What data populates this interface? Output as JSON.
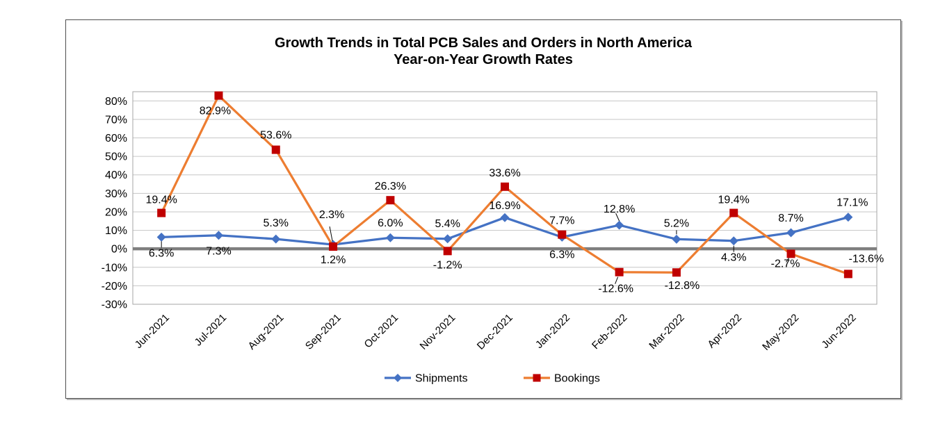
{
  "chart_data": {
    "type": "line",
    "title": "Growth Trends in Total PCB Sales and Orders in North America",
    "subtitle": "Year-on-Year Growth Rates",
    "categories": [
      "Jun-2021",
      "Jul-2021",
      "Aug-2021",
      "Sep-2021",
      "Oct-2021",
      "Nov-2021",
      "Dec-2021",
      "Jan-2022",
      "Feb-2022",
      "Mar-2022",
      "Apr-2022",
      "May-2022",
      "Jun-2022"
    ],
    "y_axis": {
      "min": -30,
      "max": 85,
      "tick_step": 10,
      "ticks": [
        {
          "value": 80,
          "label": "80%"
        },
        {
          "value": 70,
          "label": "70%"
        },
        {
          "value": 60,
          "label": "60%"
        },
        {
          "value": 50,
          "label": "50%"
        },
        {
          "value": 40,
          "label": "40%"
        },
        {
          "value": 30,
          "label": "30%"
        },
        {
          "value": 20,
          "label": "20%"
        },
        {
          "value": 10,
          "label": "10%"
        },
        {
          "value": 0,
          "label": "0%"
        },
        {
          "value": -10,
          "label": "-10%"
        },
        {
          "value": -20,
          "label": "-20%"
        },
        {
          "value": -30,
          "label": "-30%"
        }
      ]
    },
    "grid": true,
    "legend_position": "bottom-center",
    "series": [
      {
        "name": "Shipments",
        "line_color": "#4472C4",
        "marker": "diamond",
        "marker_color": "#4472C4",
        "values": [
          6.3,
          7.3,
          5.3,
          2.3,
          6.0,
          5.4,
          16.9,
          6.3,
          12.8,
          5.2,
          4.3,
          8.7,
          17.1
        ],
        "labels": [
          "6.3%",
          "7.3%",
          "5.3%",
          "2.3%",
          "6.0%",
          "5.4%",
          "16.9%",
          "6.3%",
          "12.8%",
          "5.2%",
          "4.3%",
          "8.7%",
          "17.1%"
        ],
        "label_offsets": [
          [
            0,
            28
          ],
          [
            0,
            28
          ],
          [
            0,
            -18
          ],
          [
            -2,
            -38
          ],
          [
            0,
            -16
          ],
          [
            0,
            -17
          ],
          [
            0,
            -12
          ],
          [
            0,
            30
          ],
          [
            0,
            -18
          ],
          [
            0,
            -18
          ],
          [
            0,
            29
          ],
          [
            0,
            -16
          ],
          [
            6,
            -16
          ]
        ]
      },
      {
        "name": "Bookings",
        "line_color": "#ED7D31",
        "marker": "square",
        "marker_color": "#C00000",
        "values": [
          19.4,
          82.9,
          53.6,
          1.2,
          26.3,
          -1.2,
          33.6,
          7.7,
          -12.6,
          -12.8,
          19.4,
          -2.7,
          -13.6
        ],
        "labels": [
          "19.4%",
          "82.9%",
          "53.6%",
          "1.2%",
          "26.3%",
          "-1.2%",
          "33.6%",
          "7.7%",
          "-12.6%",
          "-12.8%",
          "19.4%",
          "-2.7%",
          "-13.6%"
        ],
        "label_offsets": [
          [
            0,
            -14
          ],
          [
            -5,
            27
          ],
          [
            0,
            -16
          ],
          [
            0,
            24
          ],
          [
            0,
            -15
          ],
          [
            0,
            25
          ],
          [
            0,
            -15
          ],
          [
            0,
            -15
          ],
          [
            -5,
            29
          ],
          [
            8,
            24
          ],
          [
            0,
            -14
          ],
          [
            -8,
            19
          ],
          [
            26,
            -17
          ]
        ]
      }
    ],
    "leader_lines": [
      {
        "series": 0,
        "point": 0,
        "from": [
          0,
          6
        ],
        "to": [
          0,
          15
        ]
      },
      {
        "series": 0,
        "point": 3,
        "from": [
          -1,
          -5
        ],
        "to": [
          -5,
          -26
        ]
      },
      {
        "series": 0,
        "point": 8,
        "from": [
          0,
          -6
        ],
        "to": [
          -5,
          -17
        ]
      },
      {
        "series": 0,
        "point": 9,
        "from": [
          0,
          -7
        ],
        "to": [
          0,
          -13
        ]
      },
      {
        "series": 0,
        "point": 10,
        "from": [
          0,
          7
        ],
        "to": [
          0,
          16
        ]
      },
      {
        "series": 1,
        "point": 8,
        "from": [
          -2,
          7
        ],
        "to": [
          -6,
          17
        ]
      },
      {
        "series": 1,
        "point": 11,
        "from": [
          -3,
          6
        ],
        "to": [
          -7,
          12
        ]
      }
    ],
    "colors": {
      "grid_line": "#C6C6C6",
      "zero_line": "#7F7F7F",
      "plot_border": "#A6A6A6",
      "text": "#000000"
    }
  }
}
